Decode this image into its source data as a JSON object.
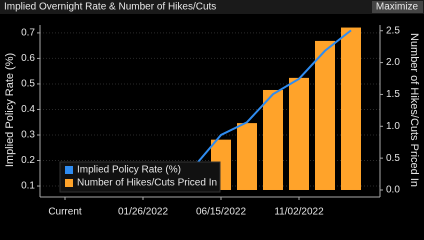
{
  "chart_data": {
    "type": "bar-line",
    "title": "Implied Overnight Rate & Number of Hikes/Cuts",
    "y_label": "Implied Policy Rate (%)",
    "y2_label": "Number of Hikes/Cuts Priced In",
    "categories": [
      "Current",
      null,
      null,
      "01/26/2022",
      null,
      null,
      "06/15/2022",
      null,
      null,
      "11/02/2022",
      null,
      null
    ],
    "series": [
      {
        "name": "Implied Policy Rate (%)",
        "type": "line",
        "color": "#2f8cf0",
        "axis": "y",
        "values": [
          0.08,
          0.08,
          0.08,
          0.09,
          0.11,
          0.18,
          0.3,
          0.35,
          0.46,
          0.52,
          0.63,
          0.71
        ]
      },
      {
        "name": "Number of Hikes/Cuts Priced In",
        "type": "bar",
        "color": "#ffa32a",
        "axis": "y2",
        "values": [
          0,
          0.01,
          0.02,
          0.04,
          0.1,
          0.39,
          0.79,
          1.05,
          1.57,
          1.76,
          2.34,
          2.55
        ]
      }
    ],
    "ylim": [
      0.057,
      0.731
    ],
    "yticks": [
      0.1,
      0.2,
      0.3,
      0.4,
      0.5,
      0.6,
      0.7
    ],
    "y2lim": [
      -0.11,
      2.59
    ],
    "y2ticks": [
      {
        "value": 0,
        "label": "0.0"
      },
      0.5,
      {
        "value": 1,
        "label": "1.0"
      },
      1.5,
      {
        "value": 2,
        "label": "2.0"
      },
      2.5
    ],
    "grid": true,
    "legend": "bottom-left"
  },
  "toolbar": {
    "button": "Maximize"
  }
}
